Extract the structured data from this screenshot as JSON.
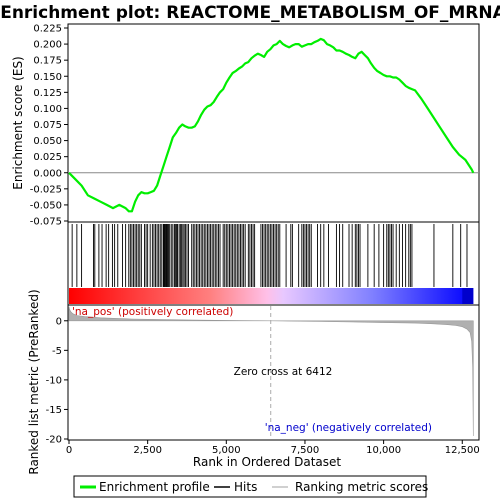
{
  "chart_data": [
    {
      "id": "enrichment-profile",
      "type": "line",
      "title": "Enrichment plot: REACTOME_METABOLISM_OF_MRNA",
      "ylabel": "Enrichment score (ES)",
      "xlim": [
        0,
        13000
      ],
      "ylim": [
        -0.075,
        0.225
      ],
      "yticks": [
        "-0.075",
        "-0.050",
        "-0.025",
        "0.000",
        "0.025",
        "0.050",
        "0.075",
        "0.100",
        "0.125",
        "0.150",
        "0.175",
        "0.200",
        "0.225"
      ],
      "grid": false,
      "color": "#00ee00",
      "series": [
        {
          "name": "Enrichment profile",
          "x": [
            0,
            200,
            400,
            600,
            800,
            1000,
            1200,
            1400,
            1600,
            1800,
            1900,
            2000,
            2100,
            2200,
            2300,
            2400,
            2500,
            2600,
            2700,
            2800,
            2900,
            3000,
            3100,
            3200,
            3300,
            3400,
            3500,
            3600,
            3700,
            3800,
            3900,
            4000,
            4100,
            4200,
            4300,
            4400,
            4500,
            4600,
            4700,
            4800,
            4900,
            5000,
            5100,
            5200,
            5300,
            5400,
            5500,
            5600,
            5700,
            5800,
            5900,
            6000,
            6100,
            6200,
            6300,
            6400,
            6500,
            6600,
            6700,
            6800,
            6900,
            7000,
            7100,
            7200,
            7300,
            7400,
            7500,
            7600,
            7700,
            7800,
            7900,
            8000,
            8100,
            8200,
            8300,
            8400,
            8500,
            8600,
            8700,
            8800,
            8900,
            9000,
            9100,
            9200,
            9300,
            9400,
            9500,
            9600,
            9700,
            9800,
            9900,
            10000,
            10100,
            10200,
            10300,
            10400,
            10500,
            10600,
            10700,
            10800,
            10900,
            11000,
            11200,
            11400,
            11600,
            11800,
            12000,
            12200,
            12400,
            12600,
            12800,
            12850
          ],
          "y": [
            0.0,
            -0.01,
            -0.02,
            -0.035,
            -0.04,
            -0.045,
            -0.05,
            -0.055,
            -0.05,
            -0.055,
            -0.06,
            -0.06,
            -0.045,
            -0.035,
            -0.03,
            -0.032,
            -0.032,
            -0.03,
            -0.028,
            -0.02,
            -0.005,
            0.01,
            0.025,
            0.04,
            0.055,
            0.062,
            0.07,
            0.075,
            0.072,
            0.07,
            0.07,
            0.072,
            0.08,
            0.09,
            0.098,
            0.103,
            0.105,
            0.11,
            0.118,
            0.125,
            0.13,
            0.14,
            0.148,
            0.155,
            0.158,
            0.162,
            0.165,
            0.17,
            0.172,
            0.178,
            0.182,
            0.185,
            0.183,
            0.18,
            0.188,
            0.192,
            0.198,
            0.2,
            0.205,
            0.2,
            0.197,
            0.195,
            0.198,
            0.2,
            0.2,
            0.196,
            0.198,
            0.2,
            0.2,
            0.203,
            0.205,
            0.208,
            0.206,
            0.2,
            0.198,
            0.195,
            0.19,
            0.19,
            0.188,
            0.185,
            0.183,
            0.18,
            0.178,
            0.185,
            0.188,
            0.183,
            0.178,
            0.17,
            0.163,
            0.158,
            0.155,
            0.152,
            0.15,
            0.15,
            0.148,
            0.148,
            0.145,
            0.14,
            0.135,
            0.132,
            0.13,
            0.128,
            0.115,
            0.1,
            0.085,
            0.07,
            0.055,
            0.04,
            0.028,
            0.02,
            0.005,
            0.0
          ]
        }
      ]
    },
    {
      "id": "hits",
      "type": "scatter",
      "xlim": [
        0,
        13000
      ],
      "series": [
        {
          "name": "Hits",
          "x": [
            100,
            250,
            400,
            780,
            820,
            950,
            1050,
            1180,
            1260,
            1380,
            1450,
            1550,
            1700,
            1800,
            1900,
            1950,
            2000,
            2050,
            2100,
            2150,
            2200,
            2250,
            2300,
            2400,
            2450,
            2500,
            2580,
            2650,
            2700,
            2750,
            2800,
            2850,
            2900,
            2950,
            3000,
            3020,
            3050,
            3080,
            3100,
            3130,
            3160,
            3200,
            3250,
            3300,
            3350,
            3380,
            3420,
            3450,
            3500,
            3540,
            3580,
            3620,
            3660,
            3700,
            3750,
            3800,
            3900,
            3950,
            4000,
            4050,
            4100,
            4150,
            4200,
            4250,
            4300,
            4350,
            4400,
            4450,
            4500,
            4550,
            4600,
            4650,
            4700,
            4750,
            4800,
            4900,
            4950,
            5000,
            5050,
            5100,
            5150,
            5200,
            5250,
            5300,
            5350,
            5400,
            5450,
            5500,
            5550,
            5600,
            5700,
            5750,
            5800,
            5850,
            5900,
            6100,
            6150,
            6200,
            6250,
            6300,
            6350,
            6400,
            6450,
            6500,
            6550,
            6600,
            6650,
            6700,
            6900,
            7050,
            7100,
            7300,
            7400,
            7450,
            7500,
            7550,
            7600,
            7650,
            7700,
            7900,
            8000,
            8100,
            8250,
            8500,
            8600,
            8700,
            8900,
            9000,
            9100,
            9150,
            9200,
            9250,
            9500,
            9700,
            9850,
            10000,
            10100,
            10150,
            10200,
            10250,
            10300,
            10400,
            10500,
            10600,
            10700,
            10800,
            10850,
            10900,
            11600,
            12200,
            12450,
            12650
          ]
        }
      ]
    },
    {
      "id": "ranked-metric",
      "type": "area",
      "xlabel": "Rank in Ordered Dataset",
      "ylabel": "Ranked list metric (PreRanked)",
      "xlim": [
        0,
        13000
      ],
      "ylim": [
        -20,
        2.5
      ],
      "xticks": [
        "0",
        "2,500",
        "5,000",
        "7,500",
        "10,000",
        "12,500"
      ],
      "yticks": [
        "0",
        "-5",
        "-10",
        "-15",
        "-20"
      ],
      "grid": false,
      "color": "#b0b0b0",
      "series": [
        {
          "name": "Ranking metric scores",
          "x": [
            0,
            20,
            60,
            120,
            250,
            500,
            1000,
            1500,
            2000,
            3000,
            4000,
            5000,
            6000,
            6412,
            7000,
            8000,
            9000,
            10000,
            11000,
            11500,
            12000,
            12300,
            12500,
            12650,
            12750,
            12800,
            12830,
            12850
          ],
          "y": [
            2.4,
            1.9,
            1.5,
            1.2,
            0.9,
            0.7,
            0.5,
            0.4,
            0.3,
            0.2,
            0.12,
            0.06,
            0.02,
            0.0,
            -0.05,
            -0.12,
            -0.2,
            -0.3,
            -0.4,
            -0.5,
            -0.65,
            -0.8,
            -1.0,
            -1.4,
            -2.0,
            -3.5,
            -8.0,
            -19.5
          ]
        }
      ],
      "annotations": {
        "pos_label": "'na_pos' (positively correlated)",
        "neg_label": "'na_neg' (negatively correlated)",
        "zero_cross_label": "Zero cross at 6412",
        "zero_cross": 6412
      }
    }
  ],
  "legend": {
    "position": "bottom",
    "items": [
      {
        "label": "Enrichment profile",
        "color": "#00ee00",
        "kind": "line"
      },
      {
        "label": "Hits",
        "color": "#000000",
        "kind": "line"
      },
      {
        "label": "Ranking metric scores",
        "color": "#c0c0c0",
        "kind": "line"
      }
    ]
  },
  "colors": {
    "enrichment": "#00ee00",
    "heat_pos": "#ff0000",
    "heat_neg": "#0000ff",
    "pos_text": "#cc0000",
    "neg_text": "#0000cc",
    "zero_line": "#aaaaaa"
  }
}
